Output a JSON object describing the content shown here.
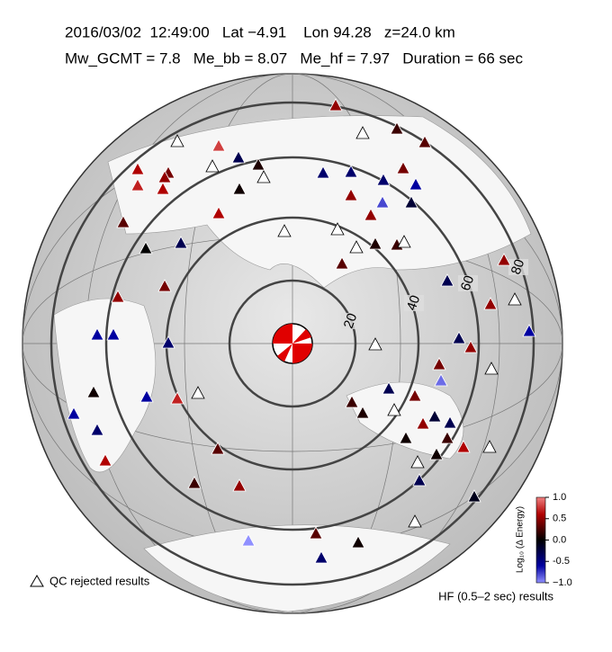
{
  "header": {
    "line1": "2016/03/02  12:49:00   Lat −4.91    Lon 94.28   z=24.0 km",
    "line2": "Mw_GCMT = 7.8   Me_bb = 8.07   Me_hf = 7.97   Duration = 66 sec"
  },
  "rings": {
    "labels": [
      "20",
      "40",
      "60",
      "80"
    ]
  },
  "legend": {
    "rejected": "QC rejected results",
    "band": "HF (0.5–2 sec) results"
  },
  "colorbar": {
    "label": "Log₁₀ (Δ Energy)",
    "lim": [
      -1,
      1
    ],
    "ticks": [
      {
        "value": 1,
        "label": "1.0"
      },
      0.5,
      {
        "value": 0,
        "label": "0.0"
      },
      -0.5,
      {
        "value": -1,
        "label": "−1.0"
      }
    ]
  },
  "stations": {
    "values": [
      0.5,
      0.2,
      null,
      null,
      0.3,
      0.8,
      null,
      -0.3,
      0.1,
      0.6,
      0.4,
      null,
      0.4,
      0.5,
      -0.4,
      -0.4,
      0.7,
      0.6,
      0.05,
      -0.4,
      -0.6,
      0.5,
      -0.8,
      0.5,
      -0.2,
      0.3,
      0.6,
      null,
      null,
      0.0,
      -0.3,
      null,
      0.1,
      0.2,
      null,
      0.3,
      0.5,
      0.4,
      0.5,
      -0.3,
      0.5,
      null,
      -0.6,
      -0.6,
      -0.4,
      -0.6,
      -0.3,
      0.5,
      null,
      0.4,
      null,
      -0.9,
      0.05,
      null,
      0.7,
      -0.6,
      -0.3,
      0.4,
      0.2,
      0.1,
      null,
      -0.6,
      -0.4,
      -0.2,
      0.5,
      -0.3,
      0.05,
      0.2,
      0.6,
      null,
      0.05,
      0.6,
      0.3,
      null,
      -0.3,
      0.2,
      0.5,
      -0.1,
      null,
      0.3,
      0.05,
      -1.0,
      -0.4
    ]
  }
}
